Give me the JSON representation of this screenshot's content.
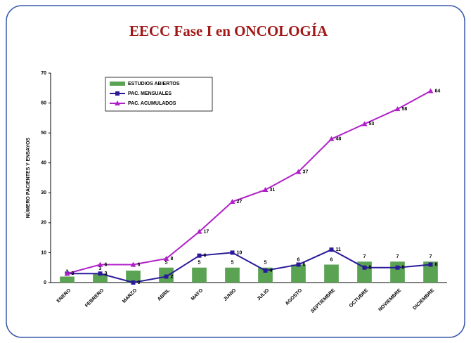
{
  "chart_data": {
    "type": "bar-line",
    "title": "EECC Fase I en ONCOLOGÍA",
    "y_label": "NÚMERO PACIENTES Y ENSAYOS",
    "categories": [
      "ENERO",
      "FEBRERO",
      "MARZO",
      "ABRIL",
      "MAYO",
      "JUNIO",
      "JULIO",
      "AGOSTO",
      "SEPTIEMBRE",
      "OCTUBRE",
      "NOVIEMBRE",
      "DICIEMBRE"
    ],
    "series": [
      {
        "name": "ESTUDIOS ABIERTOS",
        "kind": "bar",
        "color": "#5aa352",
        "values": [
          2,
          3,
          4,
          5,
          5,
          5,
          5,
          6,
          6,
          7,
          7,
          7
        ]
      },
      {
        "name": "PAC. MENSUALES",
        "kind": "line",
        "marker": "square",
        "color": "#2a1a9a",
        "values": [
          3,
          3,
          0,
          2,
          9,
          10,
          4,
          6,
          11,
          5,
          5,
          6
        ]
      },
      {
        "name": "PAC. ACUMULADOS",
        "kind": "line",
        "marker": "triangle",
        "color": "#b020c8",
        "values": [
          3,
          6,
          6,
          8,
          17,
          27,
          31,
          37,
          48,
          53,
          58,
          64
        ]
      }
    ],
    "ylim": [
      0,
      70
    ],
    "yticks": [
      0,
      10,
      20,
      30,
      40,
      50,
      60,
      70
    ]
  }
}
